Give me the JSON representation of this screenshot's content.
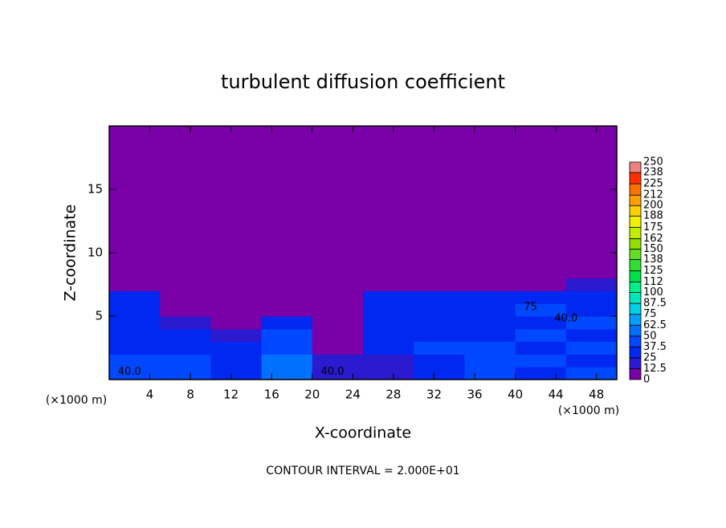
{
  "chart_data": {
    "type": "heatmap",
    "title": "turbulent diffusion coefficient",
    "xlabel": "X-coordinate",
    "ylabel": "Z-coordinate",
    "x_unit": "(×1000 m)",
    "footer": "CONTOUR INTERVAL = 2.000E+01",
    "xlim": [
      0,
      50
    ],
    "ylim": [
      0,
      20
    ],
    "xticks": [
      4,
      8,
      12,
      16,
      20,
      24,
      28,
      32,
      36,
      40,
      44,
      48
    ],
    "yticks": [
      5,
      10,
      15
    ],
    "x_edges": [
      0,
      5,
      10,
      15,
      20,
      25,
      30,
      35,
      40,
      45,
      50
    ],
    "y_edges": [
      0,
      1,
      2,
      3,
      4,
      5,
      6,
      7,
      8,
      20
    ],
    "z": [
      [
        45,
        40,
        30,
        55,
        20,
        15,
        30,
        40,
        35,
        40
      ],
      [
        40,
        45,
        30,
        50,
        15,
        20,
        35,
        45,
        40,
        35
      ],
      [
        35,
        35,
        25,
        45,
        10,
        25,
        40,
        40,
        35,
        40
      ],
      [
        35,
        30,
        15,
        40,
        10,
        30,
        30,
        35,
        40,
        35
      ],
      [
        30,
        20,
        10,
        25,
        5,
        30,
        35,
        30,
        35,
        40
      ],
      [
        30,
        10,
        5,
        10,
        5,
        25,
        30,
        25,
        40,
        35
      ],
      [
        25,
        5,
        5,
        5,
        5,
        25,
        25,
        25,
        30,
        30
      ],
      [
        5,
        5,
        0,
        0,
        0,
        5,
        5,
        5,
        10,
        15
      ],
      [
        0,
        0,
        0,
        0,
        0,
        0,
        0,
        0,
        0,
        0
      ]
    ],
    "contour_labels": [
      {
        "text": "40.0",
        "x": 2,
        "y": 0.6
      },
      {
        "text": "40.0",
        "x": 22,
        "y": 0.6
      },
      {
        "text": "40.0",
        "x": 45,
        "y": 4.8
      },
      {
        "text": "75",
        "x": 41.5,
        "y": 5.7
      }
    ],
    "colorbar": {
      "levels": [
        0,
        12.5,
        25,
        37.5,
        50,
        62.5,
        75,
        87.5,
        100,
        112,
        125,
        138,
        150,
        162,
        175,
        188,
        200,
        212,
        225,
        238,
        250
      ],
      "colors": [
        "#7a00a8",
        "#2a1ad0",
        "#0028f0",
        "#0048ff",
        "#0070ff",
        "#00a0ff",
        "#00d0e8",
        "#00e8b8",
        "#00f088",
        "#00e048",
        "#30e030",
        "#60e020",
        "#90e000",
        "#c0f000",
        "#f0f000",
        "#ffd000",
        "#ffa000",
        "#ff7000",
        "#ff3000",
        "#f08080"
      ]
    }
  }
}
